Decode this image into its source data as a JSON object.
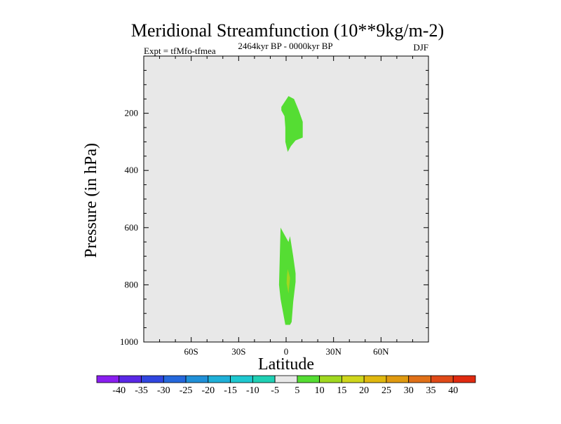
{
  "chart_data": {
    "type": "heatmap",
    "title": "Meridional Streamfunction (10**9kg/m-2)",
    "left_subtitle": "Expt = tfMfo-tfmea",
    "center_subtitle": "2464kyr BP - 0000kyr BP",
    "right_subtitle": "DJF",
    "xlabel": "Latitude",
    "ylabel": "Pressure (in hPa)",
    "xlim": [
      -90,
      90
    ],
    "ylim": [
      0,
      1000
    ],
    "y_inverted": true,
    "x_ticks": [
      {
        "value": -60,
        "label": "60S"
      },
      {
        "value": -30,
        "label": "30S"
      },
      {
        "value": 0,
        "label": "0"
      },
      {
        "value": 30,
        "label": "30N"
      },
      {
        "value": 60,
        "label": "60N"
      }
    ],
    "y_ticks": [
      {
        "value": 200,
        "label": "200"
      },
      {
        "value": 400,
        "label": "400"
      },
      {
        "value": 600,
        "label": "600"
      },
      {
        "value": 800,
        "label": "800"
      },
      {
        "value": 1000,
        "label": "1000"
      }
    ],
    "background_value_range": [
      -5,
      5
    ],
    "background_color": "#e8e8e8",
    "contour_regions": [
      {
        "name": "upper-positive-cell",
        "value_range": [
          5,
          10
        ],
        "color": "#55dd33",
        "polygon": [
          [
            1.5,
            140
          ],
          [
            5,
            150
          ],
          [
            8,
            190
          ],
          [
            10.5,
            230
          ],
          [
            10.5,
            285
          ],
          [
            6,
            295
          ],
          [
            3,
            315
          ],
          [
            1,
            335
          ],
          [
            -0.5,
            300
          ],
          [
            -0.5,
            250
          ],
          [
            -1,
            210
          ],
          [
            -3,
            190
          ],
          [
            -3,
            178
          ]
        ]
      },
      {
        "name": "lower-positive-cell",
        "value_range": [
          5,
          10
        ],
        "color": "#55dd33",
        "polygon": [
          [
            -3.5,
            600
          ],
          [
            -1.5,
            620
          ],
          [
            1.5,
            650
          ],
          [
            2.5,
            630
          ],
          [
            4.5,
            700
          ],
          [
            6,
            760
          ],
          [
            6,
            790
          ],
          [
            4.5,
            860
          ],
          [
            3.5,
            930
          ],
          [
            2.5,
            940
          ],
          [
            -0.5,
            940
          ],
          [
            -3.5,
            850
          ],
          [
            -4.5,
            800
          ],
          [
            -4,
            700
          ]
        ]
      },
      {
        "name": "lower-core",
        "value_range": [
          10,
          15
        ],
        "color": "#a0d820",
        "polygon": [
          [
            1,
            745
          ],
          [
            2.5,
            775
          ],
          [
            1.5,
            830
          ],
          [
            0.3,
            795
          ],
          [
            0.5,
            770
          ]
        ]
      }
    ],
    "colorbar": {
      "labels": [
        "-40",
        "-35",
        "-30",
        "-25",
        "-20",
        "-15",
        "-10",
        "-5",
        "5",
        "10",
        "15",
        "20",
        "25",
        "30",
        "35",
        "40"
      ],
      "colors": [
        "#8a1ef0",
        "#5a28e6",
        "#3046e0",
        "#2568dc",
        "#2090d8",
        "#1fb0d8",
        "#1ec8d0",
        "#1fd0b4",
        "#e8e8e8",
        "#55dd33",
        "#a0d820",
        "#cfd61c",
        "#e0b80f",
        "#e09a10",
        "#e07018",
        "#e04a18",
        "#e02a10"
      ]
    }
  }
}
